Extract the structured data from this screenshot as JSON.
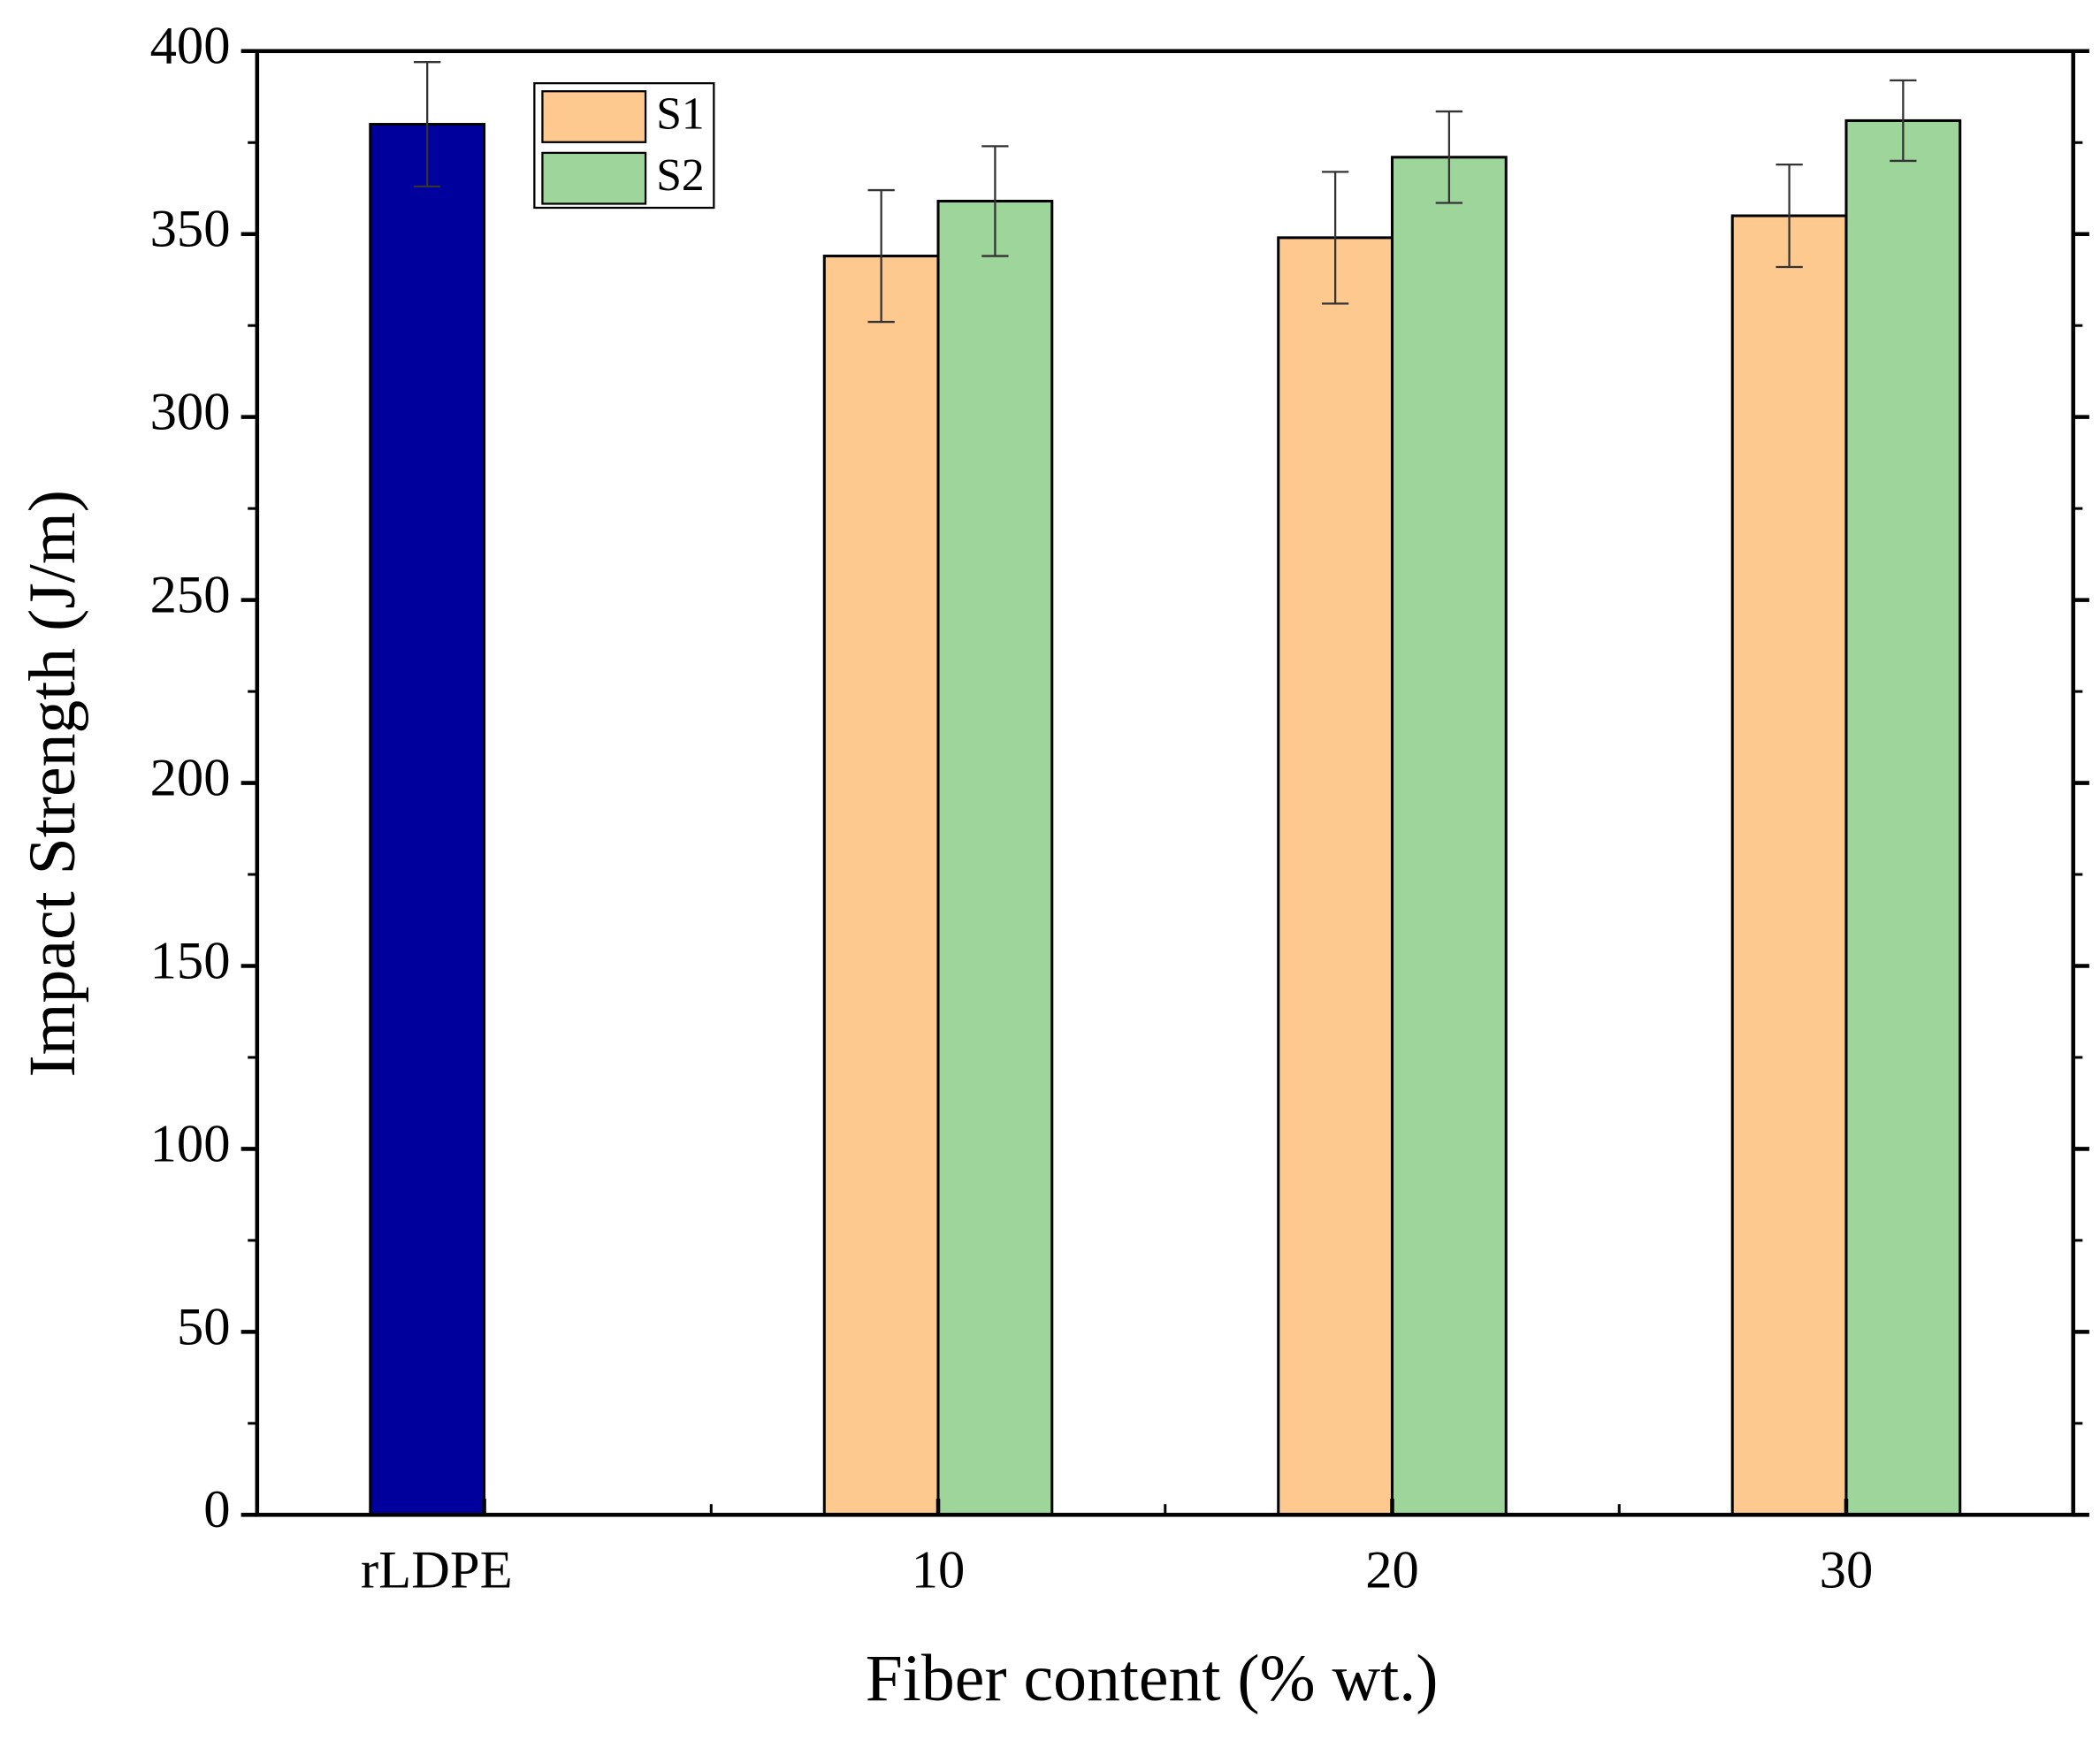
{
  "chart_data": {
    "type": "bar",
    "categories": [
      "rLDPE",
      "10",
      "20",
      "30"
    ],
    "series": [
      {
        "color": "#00009c",
        "values": [
          380,
          null,
          null,
          null
        ],
        "errors": [
          17,
          null,
          null,
          null
        ]
      },
      {
        "name": "S1",
        "color": "#fdc98f",
        "values": [
          null,
          344,
          349,
          355
        ],
        "errors": [
          null,
          18,
          18,
          14
        ]
      },
      {
        "name": "S2",
        "color": "#9dd59a",
        "values": [
          null,
          359,
          371,
          381
        ],
        "errors": [
          null,
          15,
          12.5,
          11
        ]
      }
    ],
    "xlabel": "Fiber content (% wt.)",
    "ylabel": "Impact Strength (J/m)",
    "ylim": [
      0,
      400
    ],
    "yticks": [
      0,
      50,
      100,
      150,
      200,
      250,
      300,
      350,
      400
    ],
    "legend": "upper left",
    "grid": false
  }
}
